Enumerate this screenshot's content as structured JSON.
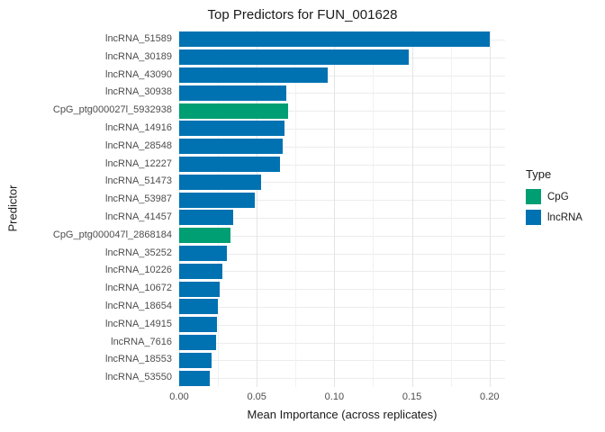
{
  "title": "Top Predictors for FUN_001628",
  "colors": {
    "CpG": "#009E73",
    "lncRNA": "#0072B2",
    "grid_major": "#e4e4e4",
    "grid_minor": "#f2f2f2",
    "axis_text": "#4d4d4d",
    "title_text": "#1a1a1a"
  },
  "chart_data": {
    "type": "bar",
    "orientation": "horizontal",
    "title": "Top Predictors for FUN_001628",
    "xlabel": "Mean Importance (across replicates)",
    "ylabel": "Predictor",
    "xlim": [
      0,
      0.21
    ],
    "x_ticks": [
      0.0,
      0.05,
      0.1,
      0.15,
      0.2
    ],
    "x_tick_labels": [
      "0.00",
      "0.05",
      "0.10",
      "0.15",
      "0.20"
    ],
    "x_minor_ticks": [
      0.025,
      0.075,
      0.125,
      0.175
    ],
    "grid": true,
    "categories": [
      "lncRNA_51589",
      "lncRNA_30189",
      "lncRNA_43090",
      "lncRNA_30938",
      "CpG_ptg000027l_5932938",
      "lncRNA_14916",
      "lncRNA_28548",
      "lncRNA_12227",
      "lncRNA_51473",
      "lncRNA_53987",
      "lncRNA_41457",
      "CpG_ptg000047l_2868184",
      "lncRNA_35252",
      "lncRNA_10226",
      "lncRNA_10672",
      "lncRNA_18654",
      "lncRNA_14915",
      "lncRNA_7616",
      "lncRNA_18553",
      "lncRNA_53550"
    ],
    "values": [
      0.2,
      0.148,
      0.096,
      0.069,
      0.07,
      0.068,
      0.067,
      0.065,
      0.053,
      0.049,
      0.035,
      0.033,
      0.031,
      0.028,
      0.026,
      0.025,
      0.0245,
      0.024,
      0.021,
      0.02
    ],
    "types": [
      "lncRNA",
      "lncRNA",
      "lncRNA",
      "lncRNA",
      "CpG",
      "lncRNA",
      "lncRNA",
      "lncRNA",
      "lncRNA",
      "lncRNA",
      "lncRNA",
      "CpG",
      "lncRNA",
      "lncRNA",
      "lncRNA",
      "lncRNA",
      "lncRNA",
      "lncRNA",
      "lncRNA",
      "lncRNA"
    ],
    "legend": {
      "title": "Type",
      "position": "right",
      "entries": [
        {
          "label": "CpG",
          "color": "#009E73"
        },
        {
          "label": "lncRNA",
          "color": "#0072B2"
        }
      ]
    }
  }
}
